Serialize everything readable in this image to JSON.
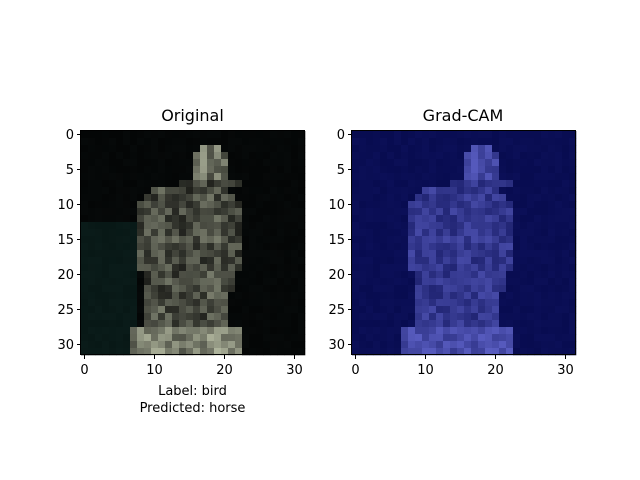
{
  "chart_data": [
    {
      "type": "heatmap",
      "title": "Original",
      "xlim": [
        -0.5,
        31.5
      ],
      "ylim": [
        31.5,
        -0.5
      ],
      "xticks": [
        0,
        10,
        20,
        30
      ],
      "yticks": [
        0,
        5,
        10,
        15,
        20,
        25,
        30
      ],
      "caption": [
        "Label: bird",
        "Predicted: horse"
      ],
      "colormap": "rgb image"
    },
    {
      "type": "heatmap",
      "title": "Grad-CAM",
      "xlim": [
        -0.5,
        31.5
      ],
      "ylim": [
        31.5,
        -0.5
      ],
      "xticks": [
        0,
        10,
        20,
        30
      ],
      "yticks": [
        0,
        5,
        10,
        15,
        20,
        25,
        30
      ],
      "colormap": "jet overlay (low activation)"
    }
  ],
  "colors": {
    "background": "#ffffff",
    "original_bg": "#050606",
    "gradcam_bg": "#0a0d52"
  }
}
